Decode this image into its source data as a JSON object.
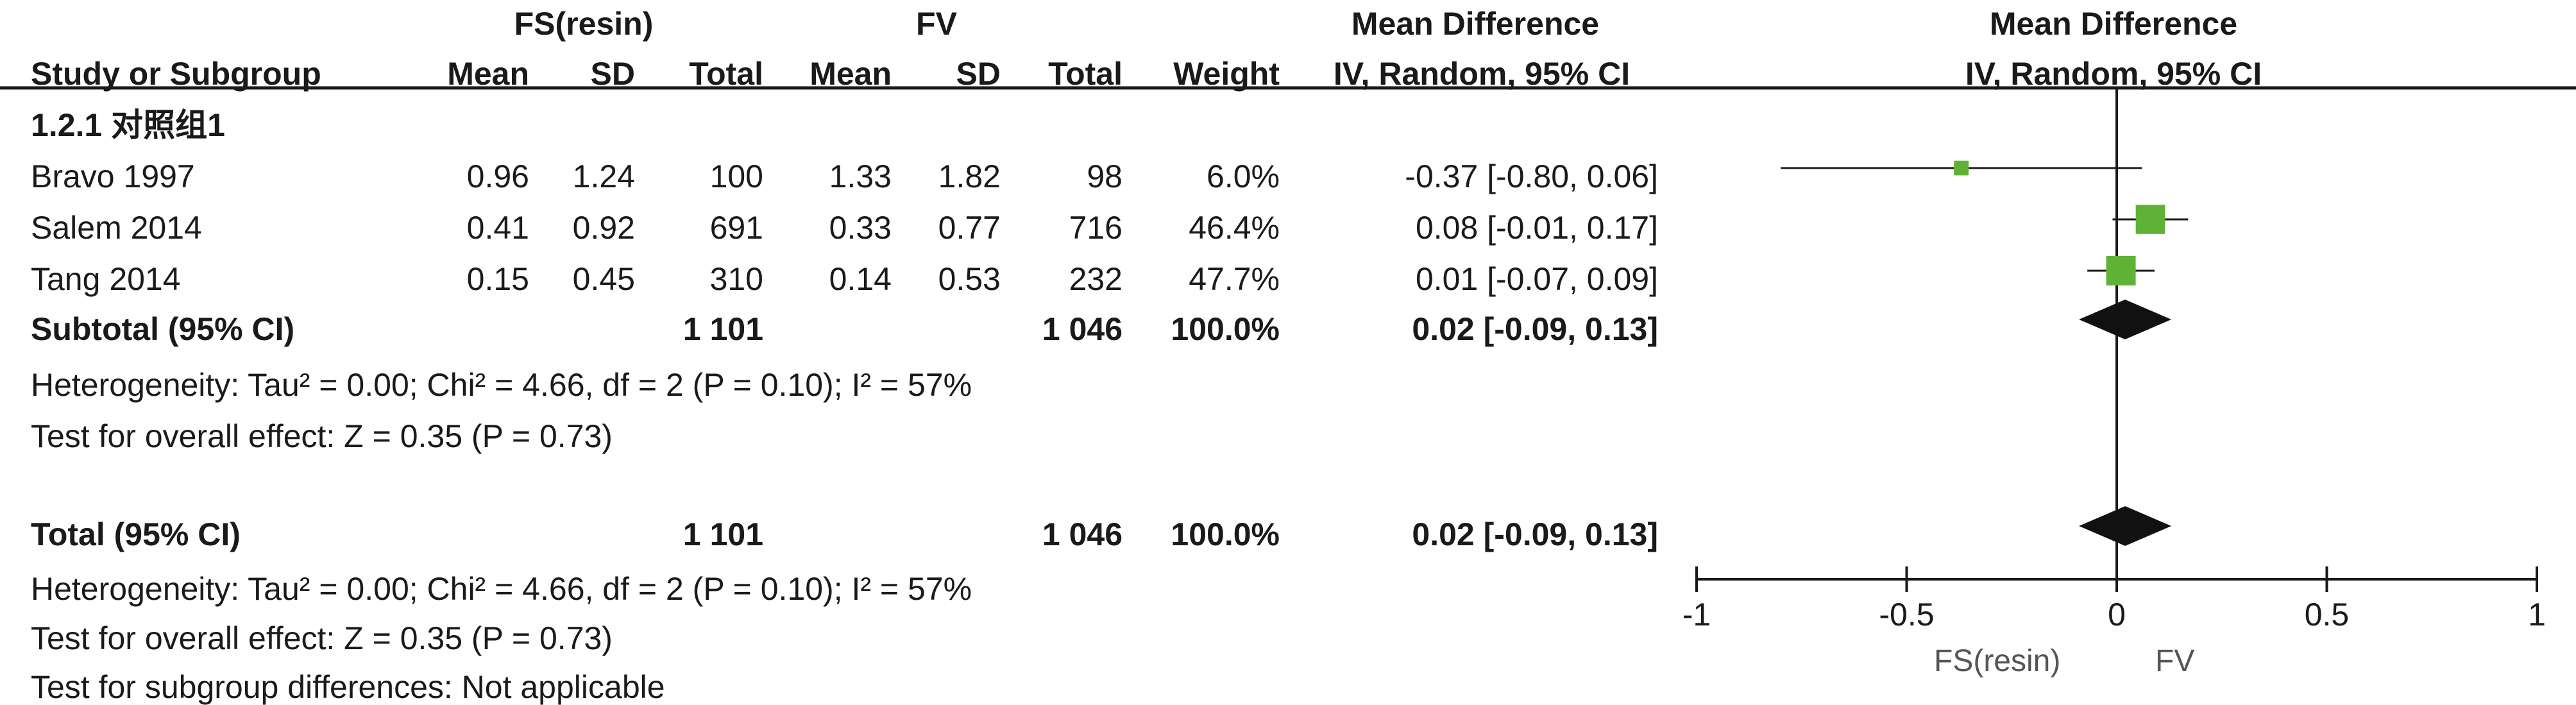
{
  "header": {
    "group1_label": "FS(resin)",
    "group2_label": "FV",
    "effect_label": "Mean Difference",
    "plot_label": "Mean Difference",
    "col_study": "Study or Subgroup",
    "col_mean1": "Mean",
    "col_sd1": "SD",
    "col_total1": "Total",
    "col_mean2": "Mean",
    "col_sd2": "SD",
    "col_total2": "Total",
    "col_weight": "Weight",
    "col_ci": "IV, Random, 95% CI",
    "plot_method": "IV, Random, 95% CI"
  },
  "subgroup": {
    "title": "1.2.1 对照组1",
    "studies": [
      {
        "name": "Bravo 1997",
        "mean1": "0.96",
        "sd1": "1.24",
        "total1": "100",
        "mean2": "1.33",
        "sd2": "1.82",
        "total2": "98",
        "weight": "6.0%",
        "ci": "-0.37 [-0.80, 0.06]"
      },
      {
        "name": "Salem 2014",
        "mean1": "0.41",
        "sd1": "0.92",
        "total1": "691",
        "mean2": "0.33",
        "sd2": "0.77",
        "total2": "716",
        "weight": "46.4%",
        "ci": "0.08 [-0.01, 0.17]"
      },
      {
        "name": "Tang 2014",
        "mean1": "0.15",
        "sd1": "0.45",
        "total1": "310",
        "mean2": "0.14",
        "sd2": "0.53",
        "total2": "232",
        "weight": "47.7%",
        "ci": "0.01 [-0.07, 0.09]"
      }
    ],
    "subtotal": {
      "label": "Subtotal (95% CI)",
      "total1": "1 101",
      "total2": "1 046",
      "weight": "100.0%",
      "ci": "0.02 [-0.09, 0.13]"
    },
    "heterogeneity": "Heterogeneity: Tau² = 0.00; Chi² = 4.66, df = 2 (P = 0.10); I² = 57%",
    "overall": "Test for overall effect: Z = 0.35 (P = 0.73)"
  },
  "total": {
    "label": "Total (95% CI)",
    "total1": "1 101",
    "total2": "1 046",
    "weight": "100.0%",
    "ci": "0.02 [-0.09, 0.13]",
    "heterogeneity": "Heterogeneity: Tau² = 0.00; Chi² = 4.66, df = 2 (P = 0.10); I² = 57%",
    "overall": "Test for overall effect: Z = 0.35 (P = 0.73)",
    "subgroup_diff": "Test for subgroup differences: Not applicable"
  },
  "axis": {
    "ticks": [
      "-1",
      "-0.5",
      "0",
      "0.5",
      "1"
    ],
    "favours_left": "FS(resin)",
    "favours_right": "FV"
  },
  "colors": {
    "square": "#5fb236",
    "diamond": "#111111",
    "line": "#1a1a1a"
  },
  "chart_data": {
    "type": "forest",
    "xlim": [
      -1,
      1
    ],
    "grid": false,
    "studies": [
      {
        "name": "Bravo 1997",
        "md": -0.37,
        "lo": -0.8,
        "hi": 0.06,
        "weight": 6.0
      },
      {
        "name": "Salem 2014",
        "md": 0.08,
        "lo": -0.01,
        "hi": 0.17,
        "weight": 46.4
      },
      {
        "name": "Tang 2014",
        "md": 0.01,
        "lo": -0.07,
        "hi": 0.09,
        "weight": 47.7
      }
    ],
    "pooled": [
      {
        "name": "Subtotal (95% CI)",
        "md": 0.02,
        "lo": -0.09,
        "hi": 0.13
      },
      {
        "name": "Total (95% CI)",
        "md": 0.02,
        "lo": -0.09,
        "hi": 0.13
      }
    ]
  }
}
